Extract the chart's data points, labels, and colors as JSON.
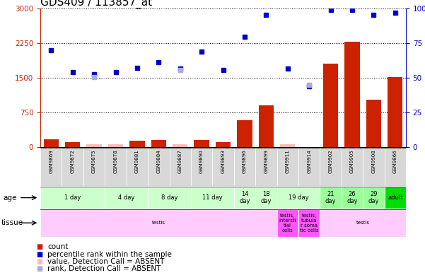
{
  "title": "GDS409 / 113857_at",
  "samples": [
    "GSM9869",
    "GSM9872",
    "GSM9875",
    "GSM9878",
    "GSM9881",
    "GSM9884",
    "GSM9887",
    "GSM9890",
    "GSM9893",
    "GSM9896",
    "GSM9899",
    "GSM9911",
    "GSM9914",
    "GSM9902",
    "GSM9905",
    "GSM9908",
    "GSM9866"
  ],
  "bar_values": [
    170,
    100,
    null,
    null,
    130,
    150,
    null,
    155,
    110,
    580,
    900,
    null,
    null,
    1800,
    2280,
    1020,
    1510
  ],
  "bar_absent": [
    null,
    null,
    60,
    60,
    null,
    null,
    60,
    null,
    null,
    null,
    null,
    60,
    null,
    null,
    null,
    null,
    null
  ],
  "rank_values": [
    2100,
    1620,
    1580,
    1620,
    1720,
    1830,
    1690,
    2070,
    1660,
    2380,
    2860,
    1690,
    1320,
    2970,
    2970,
    2860,
    2900
  ],
  "rank_absent": [
    null,
    null,
    1510,
    null,
    null,
    null,
    1660,
    null,
    null,
    null,
    null,
    null,
    1340,
    null,
    null,
    null,
    null
  ],
  "ylim": [
    0,
    3000
  ],
  "yticks": [
    0,
    750,
    1500,
    2250,
    3000
  ],
  "y2tick_labels": [
    "0",
    "25",
    "50",
    "75",
    "100%"
  ],
  "age_groups": [
    {
      "label": "1 day",
      "start": 0,
      "end": 3,
      "color": "#ccffcc"
    },
    {
      "label": "4 day",
      "start": 3,
      "end": 5,
      "color": "#ccffcc"
    },
    {
      "label": "8 day",
      "start": 5,
      "end": 7,
      "color": "#ccffcc"
    },
    {
      "label": "11 day",
      "start": 7,
      "end": 9,
      "color": "#ccffcc"
    },
    {
      "label": "14\nday",
      "start": 9,
      "end": 10,
      "color": "#ccffcc"
    },
    {
      "label": "18\nday",
      "start": 10,
      "end": 11,
      "color": "#ccffcc"
    },
    {
      "label": "19 day",
      "start": 11,
      "end": 13,
      "color": "#ccffcc"
    },
    {
      "label": "21\nday",
      "start": 13,
      "end": 14,
      "color": "#99ff99"
    },
    {
      "label": "26\nday",
      "start": 14,
      "end": 15,
      "color": "#99ff99"
    },
    {
      "label": "29\nday",
      "start": 15,
      "end": 16,
      "color": "#99ff99"
    },
    {
      "label": "adult",
      "start": 16,
      "end": 17,
      "color": "#00dd00"
    }
  ],
  "tissue_groups": [
    {
      "label": "testis",
      "start": 0,
      "end": 11,
      "color": "#ffccff"
    },
    {
      "label": "testis,\nintersti\ntial\ncells",
      "start": 11,
      "end": 12,
      "color": "#ff55ff"
    },
    {
      "label": "testis,\ntubula\nr soma\ntic cells",
      "start": 12,
      "end": 13,
      "color": "#ff55ff"
    },
    {
      "label": "testis",
      "start": 13,
      "end": 17,
      "color": "#ffccff"
    }
  ],
  "bar_color": "#cc2200",
  "bar_absent_color": "#ffbbbb",
  "rank_color": "#0000cc",
  "rank_absent_color": "#aaaadd",
  "bg_color": "#ffffff"
}
